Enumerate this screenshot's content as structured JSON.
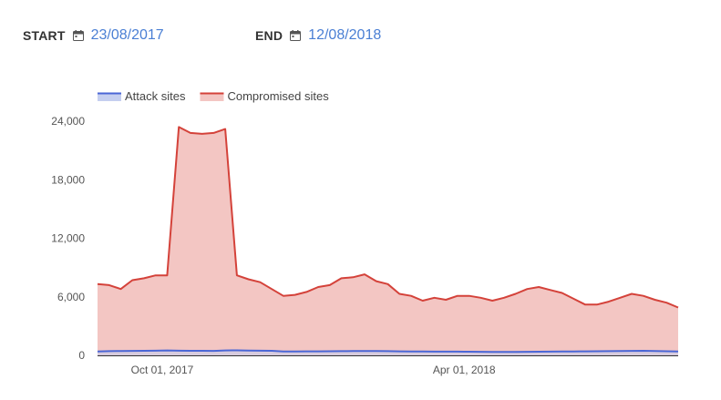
{
  "filters": {
    "start_label": "START",
    "start_date": "23/08/2017",
    "end_label": "END",
    "end_date": "12/08/2018",
    "calendar_icon": "calendar-icon"
  },
  "colors": {
    "accent": "#4a7fd4",
    "attack_line": "#4a66d6",
    "attack_fill": "#c5cff0",
    "compromised_line": "#d4423a",
    "compromised_fill": "#f3c6c3"
  },
  "chart_data": {
    "type": "area",
    "title": "",
    "xlabel": "",
    "ylabel": "",
    "ylim": [
      0,
      24000
    ],
    "yticks": [
      0,
      6000,
      12000,
      18000,
      24000
    ],
    "ytick_labels": [
      "0",
      "6,000",
      "12,000",
      "18,000",
      "24,000"
    ],
    "xticks": [
      "2017-10-01",
      "2018-04-01"
    ],
    "xtick_labels": [
      "Oct 01, 2017",
      "Apr 01, 2018"
    ],
    "legend_position": "top-left",
    "grid": false,
    "x": [
      "2017-08-23",
      "2017-08-30",
      "2017-09-06",
      "2017-09-13",
      "2017-09-20",
      "2017-09-27",
      "2017-10-04",
      "2017-10-11",
      "2017-10-18",
      "2017-10-25",
      "2017-11-01",
      "2017-11-08",
      "2017-11-15",
      "2017-11-22",
      "2017-11-29",
      "2017-12-06",
      "2017-12-13",
      "2017-12-20",
      "2017-12-27",
      "2018-01-03",
      "2018-01-10",
      "2018-01-17",
      "2018-01-24",
      "2018-01-31",
      "2018-02-07",
      "2018-02-14",
      "2018-02-21",
      "2018-02-28",
      "2018-03-07",
      "2018-03-14",
      "2018-03-21",
      "2018-03-28",
      "2018-04-04",
      "2018-04-11",
      "2018-04-18",
      "2018-04-25",
      "2018-05-02",
      "2018-05-09",
      "2018-05-16",
      "2018-05-23",
      "2018-05-30",
      "2018-06-06",
      "2018-06-13",
      "2018-06-20",
      "2018-06-27",
      "2018-07-04",
      "2018-07-11",
      "2018-07-18",
      "2018-07-25",
      "2018-08-01",
      "2018-08-08"
    ],
    "series": [
      {
        "name": "Attack sites",
        "values": [
          400,
          430,
          450,
          460,
          470,
          480,
          500,
          480,
          470,
          470,
          460,
          500,
          510,
          490,
          480,
          470,
          400,
          400,
          410,
          410,
          420,
          430,
          440,
          450,
          440,
          430,
          410,
          400,
          390,
          380,
          380,
          380,
          370,
          360,
          350,
          350,
          350,
          360,
          370,
          380,
          390,
          400,
          410,
          420,
          430,
          440,
          460,
          470,
          450,
          420,
          390
        ]
      },
      {
        "name": "Compromised sites",
        "values": [
          7300,
          7200,
          6800,
          7700,
          7900,
          8200,
          8200,
          23400,
          22800,
          22700,
          22800,
          23200,
          8200,
          7800,
          7500,
          6800,
          6100,
          6200,
          6500,
          7000,
          7200,
          7900,
          8000,
          8300,
          7600,
          7300,
          6300,
          6100,
          5600,
          5900,
          5700,
          6100,
          6100,
          5900,
          5600,
          5900,
          6300,
          6800,
          7000,
          6700,
          6400,
          5800,
          5200,
          5200,
          5500,
          5900,
          6300,
          6100,
          5700,
          5400,
          4900
        ]
      }
    ]
  }
}
